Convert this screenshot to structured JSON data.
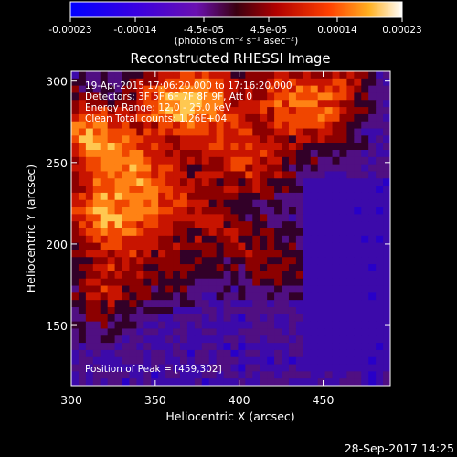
{
  "chart_data": {
    "type": "heatmap",
    "title": "Reconstructed RHESSI Image",
    "xlabel": "Heliocentric X (arcsec)",
    "ylabel": "Heliocentric Y (arcsec)",
    "xlim": [
      300,
      490
    ],
    "ylim": [
      113,
      306
    ],
    "x_ticks": [
      300,
      350,
      400,
      450
    ],
    "y_ticks": [
      150,
      200,
      250,
      300
    ],
    "colorbar": {
      "ticks": [
        "-0.00023",
        "-0.00014",
        "-4.5e-05",
        "4.5e-05",
        "0.00014",
        "0.00023"
      ],
      "tick_values": [
        -0.00023,
        -0.00014,
        -4.5e-05,
        4.5e-05,
        0.00014,
        0.00023
      ],
      "range": [
        -0.00023,
        0.00023
      ],
      "unit_label": "(photons cm⁻² s⁻¹ asec⁻²)"
    },
    "annotations": [
      "19-Apr-2015 17:06:20.000 to 17:16:20.000",
      "Detectors: 3F 5F 6F 7F 8F 9F, Att 0",
      "Energy Range: 12.0 - 25.0 keV",
      "Clean     Total counts: 1.26E+04"
    ],
    "peak_label": "Position of Peak = [459,302]",
    "peak": [
      459,
      302
    ],
    "grid": false
  },
  "footer": {
    "timestamp": "28-Sep-2017 14:25"
  }
}
